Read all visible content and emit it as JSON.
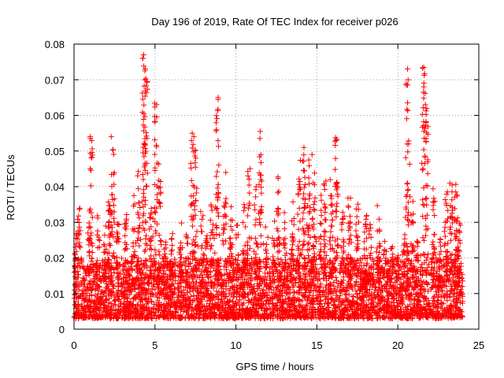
{
  "chart_data": {
    "type": "scatter",
    "title": "Day 196 of 2019, Rate Of TEC Index for receiver p026",
    "xlabel": "GPS time / hours",
    "ylabel": "ROTI / TECUs",
    "xlim": [
      0,
      25
    ],
    "ylim": [
      0,
      0.08
    ],
    "xticks": [
      0,
      5,
      10,
      15,
      20,
      25
    ],
    "yticks": [
      0,
      0.01,
      0.02,
      0.03,
      0.04,
      0.05,
      0.06,
      0.07,
      0.08
    ],
    "xtick_labels": [
      "0",
      "5",
      "10",
      "15",
      "20",
      "25"
    ],
    "ytick_labels": [
      "0",
      "0.01",
      "0.02",
      "0.03",
      "0.04",
      "0.05",
      "0.06",
      "0.07",
      "0.08"
    ],
    "grid": true,
    "marker": "+",
    "color": "#ff0000",
    "time_range_hours": [
      0,
      24
    ],
    "typical_range": [
      0.003,
      0.02
    ],
    "notable_points": [
      {
        "x": 4.3,
        "y": 0.077
      },
      {
        "x": 4.25,
        "y": 0.076
      },
      {
        "x": 4.4,
        "y": 0.073
      },
      {
        "x": 8.9,
        "y": 0.065
      },
      {
        "x": 5.1,
        "y": 0.063
      },
      {
        "x": 11.5,
        "y": 0.0555
      },
      {
        "x": 21.6,
        "y": 0.0735
      },
      {
        "x": 20.6,
        "y": 0.073
      },
      {
        "x": 20.6,
        "y": 0.0685
      },
      {
        "x": 21.6,
        "y": 0.068
      },
      {
        "x": 20.6,
        "y": 0.0635
      },
      {
        "x": 21.7,
        "y": 0.063
      },
      {
        "x": 7.3,
        "y": 0.055
      },
      {
        "x": 7.4,
        "y": 0.054
      },
      {
        "x": 1.0,
        "y": 0.054
      },
      {
        "x": 2.3,
        "y": 0.054
      },
      {
        "x": 16.2,
        "y": 0.053
      },
      {
        "x": 8.8,
        "y": 0.056
      },
      {
        "x": 14.2,
        "y": 0.051
      },
      {
        "x": 14.7,
        "y": 0.049
      },
      {
        "x": 3.7,
        "y": 0.0375
      },
      {
        "x": 1.0,
        "y": 0.045
      }
    ]
  }
}
